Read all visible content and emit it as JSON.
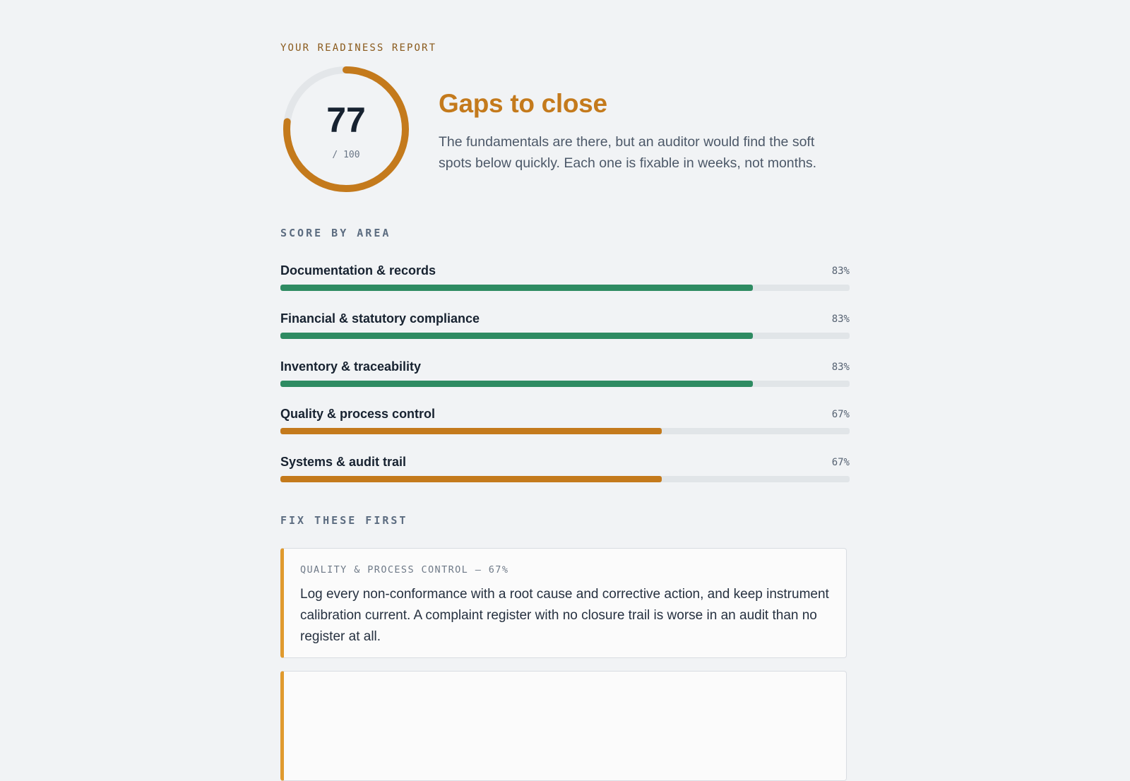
{
  "report": {
    "eyebrow": "YOUR READINESS REPORT",
    "score": "77",
    "score_max": "/ 100",
    "score_fraction": 0.77,
    "verdict": "Gaps to close",
    "summary": "The fundamentals are there, but an auditor would find the soft spots below quickly. Each one is fixable in weeks, not months."
  },
  "colors": {
    "accent": "#c47a1c",
    "good": "#2e8b62",
    "warn": "#c47a1c",
    "track": "#e1e5e8",
    "card_border": "#e09a2e"
  },
  "areas": {
    "label": "SCORE BY AREA",
    "items": [
      {
        "name": "Documentation & records",
        "pct_label": "83%",
        "value": 83,
        "status": "good"
      },
      {
        "name": "Financial & statutory compliance",
        "pct_label": "83%",
        "value": 83,
        "status": "good"
      },
      {
        "name": "Inventory & traceability",
        "pct_label": "83%",
        "value": 83,
        "status": "good"
      },
      {
        "name": "Quality & process control",
        "pct_label": "67%",
        "value": 67,
        "status": "warn"
      },
      {
        "name": "Systems & audit trail",
        "pct_label": "67%",
        "value": 67,
        "status": "warn"
      }
    ]
  },
  "fixes": {
    "label": "FIX THESE FIRST",
    "items": [
      {
        "title": "QUALITY & PROCESS CONTROL — 67%",
        "body": "Log every non-conformance with a root cause and corrective action, and keep instrument calibration current. A complaint register with no closure trail is worse in an audit than no register at all."
      }
    ]
  }
}
